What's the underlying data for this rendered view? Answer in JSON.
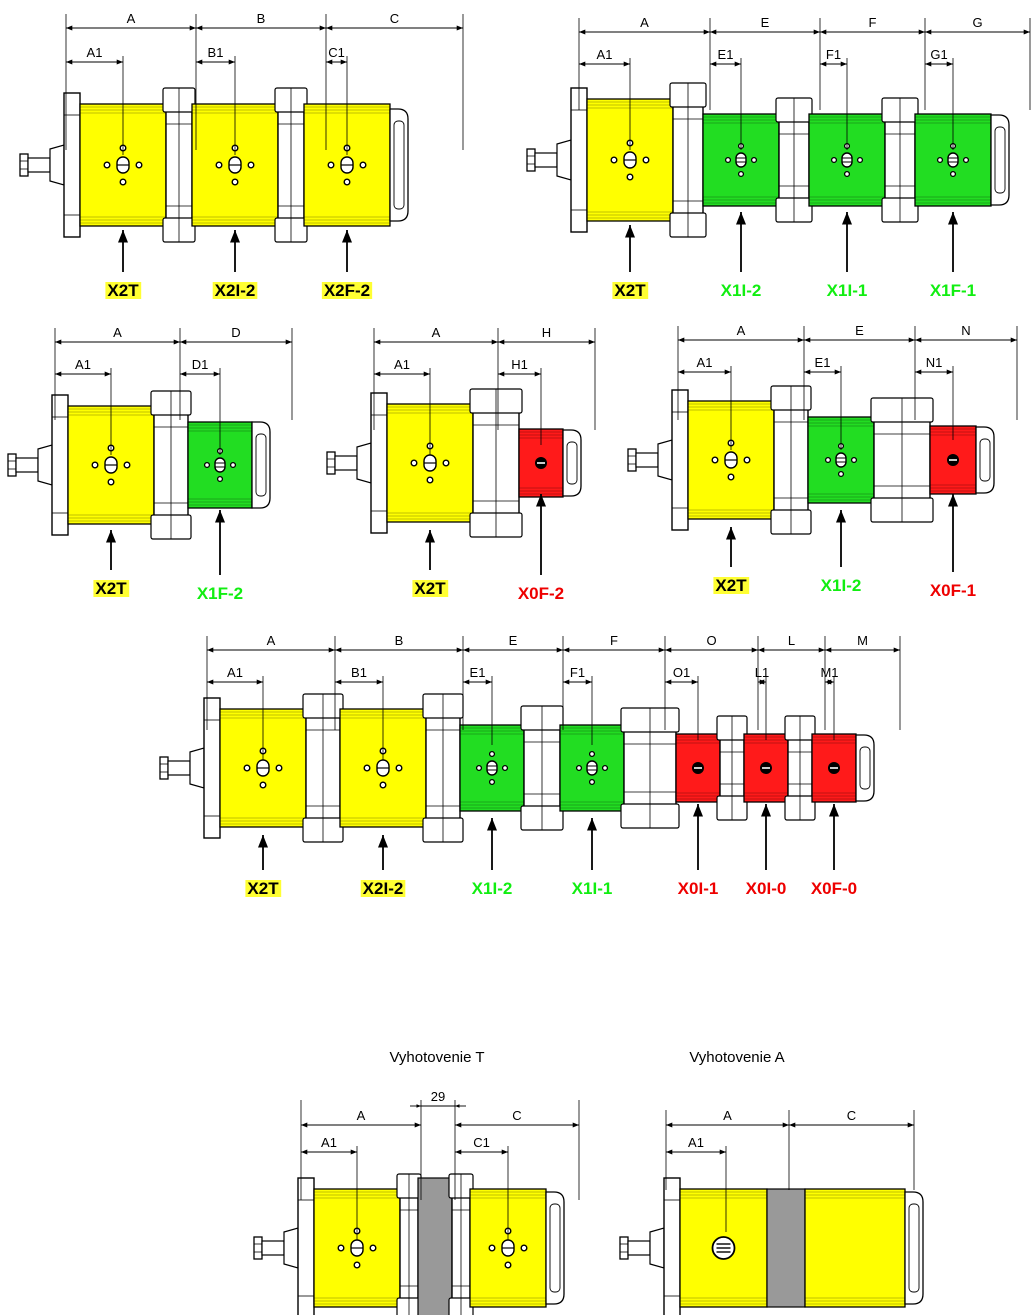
{
  "colors": {
    "x2": "#ffff00",
    "x1": "#22dd22",
    "x0": "#ff1a1a",
    "label_x2_bg": "#ffff33",
    "label_x2_text": "#000000",
    "label_x1_text": "#11ee11",
    "label_x0_text": "#ee0000",
    "spacer": "#999999",
    "outline": "#000000",
    "flange": "#ffffff"
  },
  "diagrams": [
    {
      "id": "triple-x2",
      "dims": [
        {
          "main": "A",
          "sub": "A1"
        },
        {
          "main": "B",
          "sub": "B1"
        },
        {
          "main": "C",
          "sub": "C1"
        }
      ],
      "labels": [
        "X2T",
        "X2I-2",
        "X2F-2"
      ]
    },
    {
      "id": "x2-with-three-x1",
      "dims": [
        {
          "main": "A",
          "sub": "A1"
        },
        {
          "main": "E",
          "sub": "E1"
        },
        {
          "main": "F",
          "sub": "F1"
        },
        {
          "main": "G",
          "sub": "G1"
        }
      ],
      "labels": [
        "X2T",
        "X1I-2",
        "X1I-1",
        "X1F-1"
      ]
    },
    {
      "id": "x2-x1f",
      "dims": [
        {
          "main": "A",
          "sub": "A1"
        },
        {
          "main": "D",
          "sub": "D1"
        }
      ],
      "labels": [
        "X2T",
        "X1F-2"
      ]
    },
    {
      "id": "x2-x0f",
      "dims": [
        {
          "main": "A",
          "sub": "A1"
        },
        {
          "main": "H",
          "sub": "H1"
        }
      ],
      "labels": [
        "X2T",
        "X0F-2"
      ]
    },
    {
      "id": "x2-x1-x0",
      "dims": [
        {
          "main": "A",
          "sub": "A1"
        },
        {
          "main": "E",
          "sub": "E1"
        },
        {
          "main": "N",
          "sub": "N1"
        }
      ],
      "labels": [
        "X2T",
        "X1I-2",
        "X0F-1"
      ]
    },
    {
      "id": "seven-stage",
      "dims": [
        {
          "main": "A",
          "sub": "A1"
        },
        {
          "main": "B",
          "sub": "B1"
        },
        {
          "main": "E",
          "sub": "E1"
        },
        {
          "main": "F",
          "sub": "F1"
        },
        {
          "main": "O",
          "sub": "O1"
        },
        {
          "main": "L",
          "sub": "L1"
        },
        {
          "main": "M",
          "sub": "M1"
        }
      ],
      "labels": [
        "X2T",
        "X2I-2",
        "X1I-2",
        "X1I-1",
        "X0I-1",
        "X0I-0",
        "X0F-0"
      ]
    },
    {
      "id": "variant-t",
      "caption": "Vyhotovenie T",
      "dims": [
        {
          "main": "A",
          "sub": "A1"
        },
        {
          "main": "29",
          "sub": ""
        },
        {
          "main": "C",
          "sub": "C1"
        }
      ],
      "labels": []
    },
    {
      "id": "variant-a",
      "caption": "Vyhotovenie A",
      "dims": [
        {
          "main": "A",
          "sub": "A1"
        },
        {
          "main": "C",
          "sub": ""
        }
      ],
      "labels": []
    }
  ]
}
